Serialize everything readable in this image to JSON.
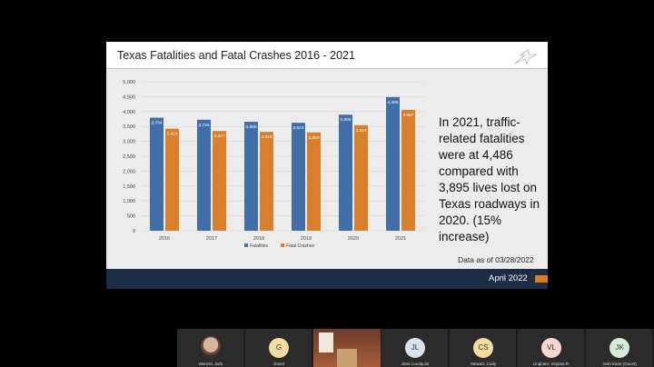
{
  "slide": {
    "title": "Texas Fatalities and Fatal Crashes  2016 - 2021",
    "logo_icon": "txdot-star-logo"
  },
  "chart_data": {
    "type": "bar",
    "categories": [
      "2016",
      "2017",
      "2018",
      "2019",
      "2020",
      "2021"
    ],
    "series": [
      {
        "name": "Fatalities",
        "color": "#3f6ea8",
        "values": [
          3794,
          3726,
          3656,
          3623,
          3895,
          4486
        ],
        "labels": [
          "3,794",
          "3,726",
          "3,656",
          "3,623",
          "3,895",
          "4,486"
        ]
      },
      {
        "name": "Fatal Crashes",
        "color": "#d97f2b",
        "values": [
          3424,
          3347,
          3318,
          3300,
          3542,
          4057
        ],
        "labels": [
          "3,424",
          "3,347",
          "3,318",
          "3,300",
          "3,542",
          "4,057"
        ]
      }
    ],
    "yticks": [
      "0",
      "500",
      "1,000",
      "1,500",
      "2,000",
      "2,500",
      "3,000",
      "3,500",
      "4,000",
      "4,500",
      "5,000"
    ],
    "ylim": [
      0,
      5000
    ],
    "grid": true,
    "legend_position": "bottom"
  },
  "callout": {
    "text": "In 2021, traffic-related fatalities were at 4,486 compared with 3,895 lives lost on Texas roadways in 2020. (15% increase)"
  },
  "data_asof": "Data as of 03/28/2022",
  "footer": {
    "date": "April 2022",
    "accent_color": "#e07a1f"
  },
  "participants": [
    {
      "name": "Wenzel, Jack",
      "initials": "",
      "type": "photo",
      "color": ""
    },
    {
      "name": "Guest",
      "initials": "G",
      "type": "initials",
      "color": "#f3dca0"
    },
    {
      "name": "",
      "initials": "",
      "type": "room",
      "color": ""
    },
    {
      "name": "Jane Lundquist",
      "initials": "JL",
      "type": "initials",
      "color": "#d8e2f0"
    },
    {
      "name": "Stewart, Cody",
      "initials": "CS",
      "type": "initials",
      "color": "#f3dca0"
    },
    {
      "name": "Lingham, Virginia R.",
      "initials": "VL",
      "type": "initials",
      "color": "#f5d6d6"
    },
    {
      "name": "Josh Kane (Guest)",
      "initials": "JK",
      "type": "initials",
      "color": "#d6ecd6"
    }
  ]
}
